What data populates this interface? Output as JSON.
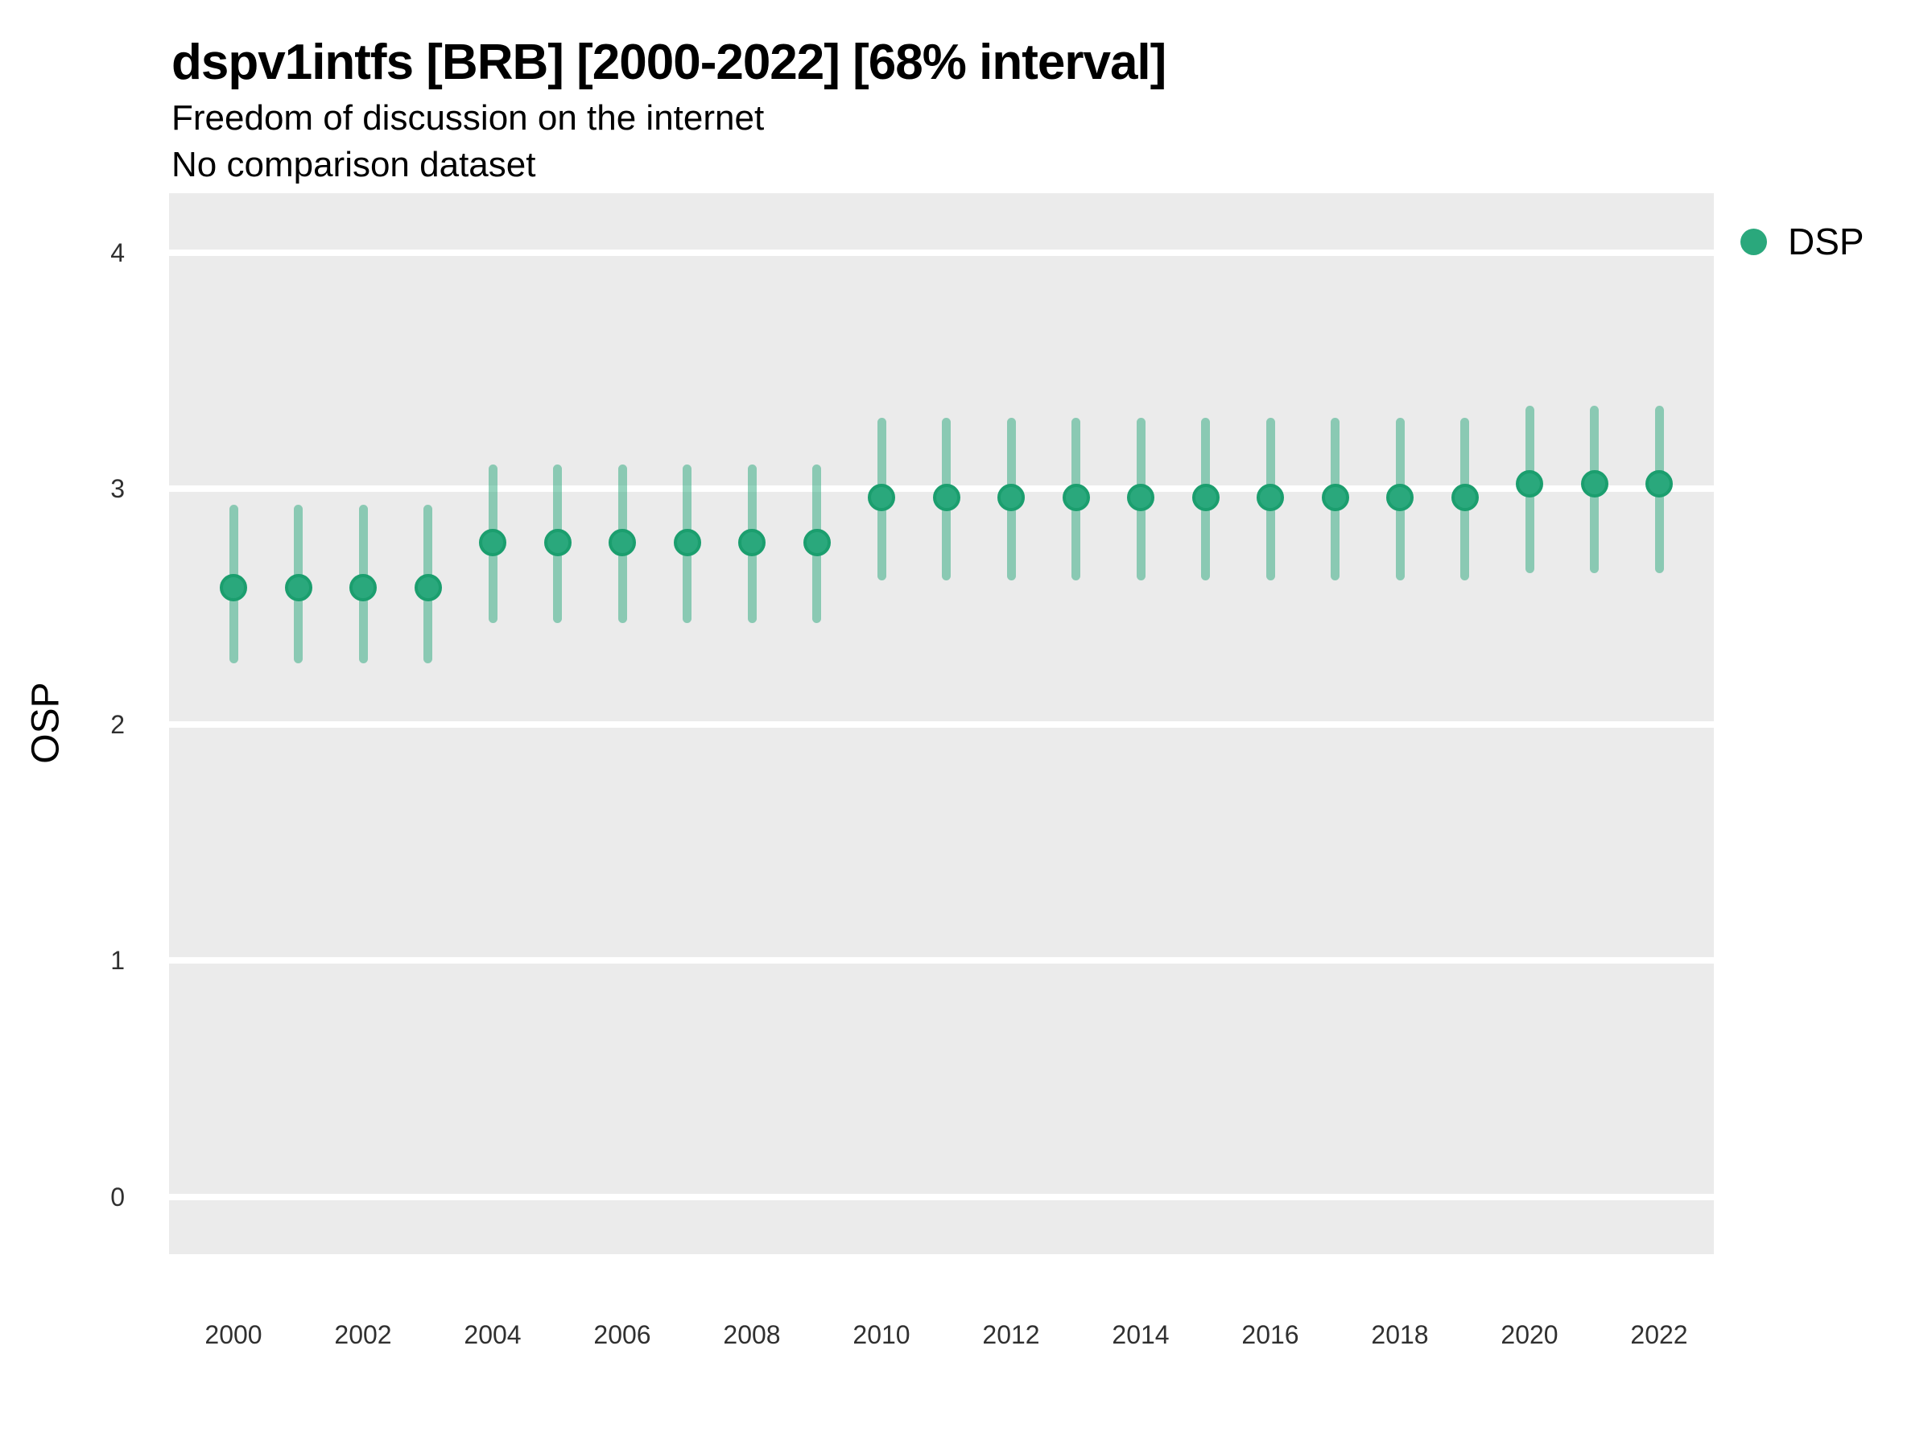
{
  "header": {
    "title": "dspv1intfs [BRB] [2000-2022] [68% interval]",
    "subtitle": "Freedom of discussion on the internet",
    "note": "No comparison dataset"
  },
  "chart_data": {
    "type": "scatter",
    "variant": "pointrange",
    "title": "dspv1intfs [BRB] [2000-2022] [68% interval]",
    "subtitle": "Freedom of discussion on the internet",
    "note": "No comparison dataset",
    "xlabel": "",
    "ylabel": "OSP",
    "x": [
      2000,
      2001,
      2002,
      2003,
      2004,
      2005,
      2006,
      2007,
      2008,
      2009,
      2010,
      2011,
      2012,
      2013,
      2014,
      2015,
      2016,
      2017,
      2018,
      2019,
      2020,
      2021,
      2022
    ],
    "series": [
      {
        "name": "DSP",
        "values": [
          2.58,
          2.58,
          2.58,
          2.58,
          2.77,
          2.77,
          2.77,
          2.77,
          2.77,
          2.77,
          2.96,
          2.96,
          2.96,
          2.96,
          2.96,
          2.96,
          2.96,
          2.96,
          2.96,
          2.96,
          3.02,
          3.02,
          3.02
        ],
        "lo": [
          2.26,
          2.26,
          2.26,
          2.26,
          2.43,
          2.43,
          2.43,
          2.43,
          2.43,
          2.43,
          2.61,
          2.61,
          2.61,
          2.61,
          2.61,
          2.61,
          2.61,
          2.61,
          2.61,
          2.61,
          2.64,
          2.64,
          2.64
        ],
        "hi": [
          2.93,
          2.93,
          2.93,
          2.93,
          3.1,
          3.1,
          3.1,
          3.1,
          3.1,
          3.1,
          3.3,
          3.3,
          3.3,
          3.3,
          3.3,
          3.3,
          3.3,
          3.3,
          3.3,
          3.3,
          3.35,
          3.35,
          3.35
        ]
      }
    ],
    "interval_level": "68%",
    "ylim": [
      -0.25,
      4.25
    ],
    "yticks": [
      0,
      1,
      2,
      3,
      4
    ],
    "xticks": [
      2000,
      2002,
      2004,
      2006,
      2008,
      2010,
      2012,
      2014,
      2016,
      2018,
      2020,
      2022
    ],
    "grid": "horizontal-major-only",
    "legend": {
      "position": "right",
      "entries": [
        {
          "label": "DSP",
          "color": "#2aa87c"
        }
      ]
    },
    "colors": {
      "point_fill": "#2aa87c",
      "point_stroke": "#1b9e6e",
      "interval": "#2aa87c",
      "interval_opacity": 0.5,
      "panel_background": "#ebebeb",
      "gridline": "#ffffff"
    }
  }
}
